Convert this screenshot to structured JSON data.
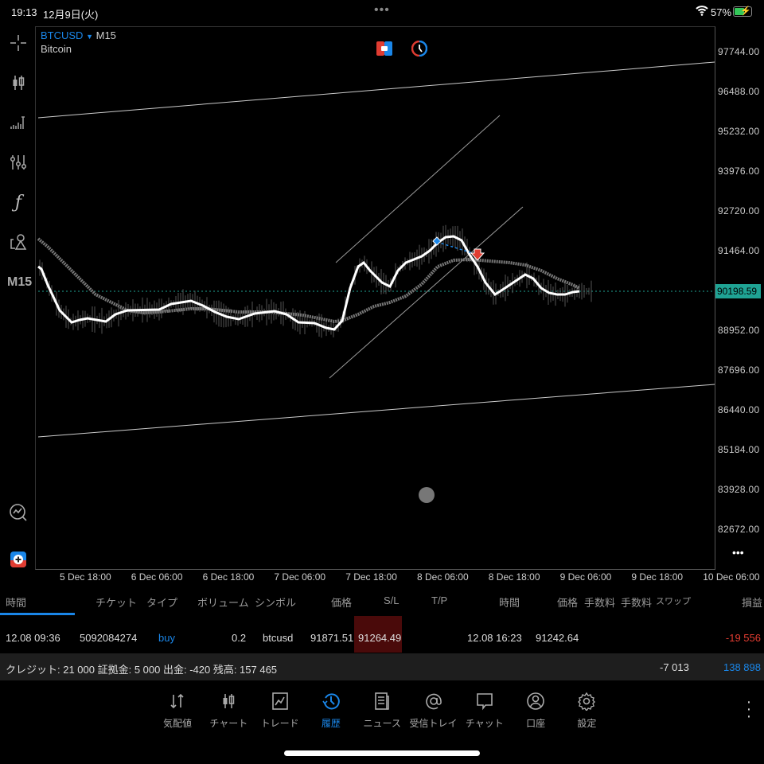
{
  "status": {
    "time": "19:13",
    "date": "12月9日(火)",
    "battery": "57%"
  },
  "chart": {
    "symbol": "BTCUSD",
    "timeframe": "M15",
    "description": "Bitcoin",
    "current_price": "90198.59",
    "side_timeframe": "M15",
    "y_ticks": [
      "97744.00",
      "96488.00",
      "95232.00",
      "93976.00",
      "92720.00",
      "91464.00",
      "88952.00",
      "87696.00",
      "86440.00",
      "85184.00",
      "83928.00",
      "82672.00"
    ],
    "x_ticks": [
      "5 Dec 18:00",
      "6 Dec 06:00",
      "6 Dec 18:00",
      "7 Dec 06:00",
      "7 Dec 18:00",
      "8 Dec 06:00",
      "8 Dec 18:00",
      "9 Dec 06:00",
      "9 Dec 18:00",
      "10 Dec 06:00"
    ],
    "colors": {
      "symbol": "#1a86e8",
      "price_tag": "#1fa394",
      "loss": "#e03c31",
      "sl_bg": "#4a0a0a"
    }
  },
  "toolbar": [
    "crosshair-icon",
    "candlestick-icon",
    "volume-icon",
    "indicators-icon",
    "function-icon",
    "objects-icon"
  ],
  "history": {
    "headers": [
      "時間",
      "チケット",
      "タイプ",
      "ボリューム",
      "シンボル",
      "価格",
      "S/L",
      "T/P",
      "時間",
      "価格",
      "手数料",
      "手数料",
      "スワップ",
      "損益"
    ],
    "row": {
      "open_time": "12.08 09:36",
      "ticket": "5092084274",
      "type": "buy",
      "volume": "0.2",
      "symbol": "btcusd",
      "open_price": "91871.51",
      "sl": "91264.49",
      "tp": "",
      "close_time": "12.08 16:23",
      "close_price": "91242.64",
      "profit": "-19 556"
    },
    "summary": {
      "text": "クレジット: 21 000 証拠金: 5 000 出金: -420 残高: 157 465",
      "swap_total": "-7 013",
      "total": "138 898"
    }
  },
  "nav": [
    {
      "label": "気配値",
      "icon": "quotes-icon"
    },
    {
      "label": "チャート",
      "icon": "chart-icon"
    },
    {
      "label": "トレード",
      "icon": "trade-icon"
    },
    {
      "label": "履歴",
      "icon": "history-icon",
      "active": true
    },
    {
      "label": "ニュース",
      "icon": "news-icon"
    },
    {
      "label": "受信トレイ",
      "icon": "mail-icon"
    },
    {
      "label": "チャット",
      "icon": "chat-icon"
    },
    {
      "label": "口座",
      "icon": "account-icon"
    },
    {
      "label": "設定",
      "icon": "settings-icon"
    }
  ]
}
